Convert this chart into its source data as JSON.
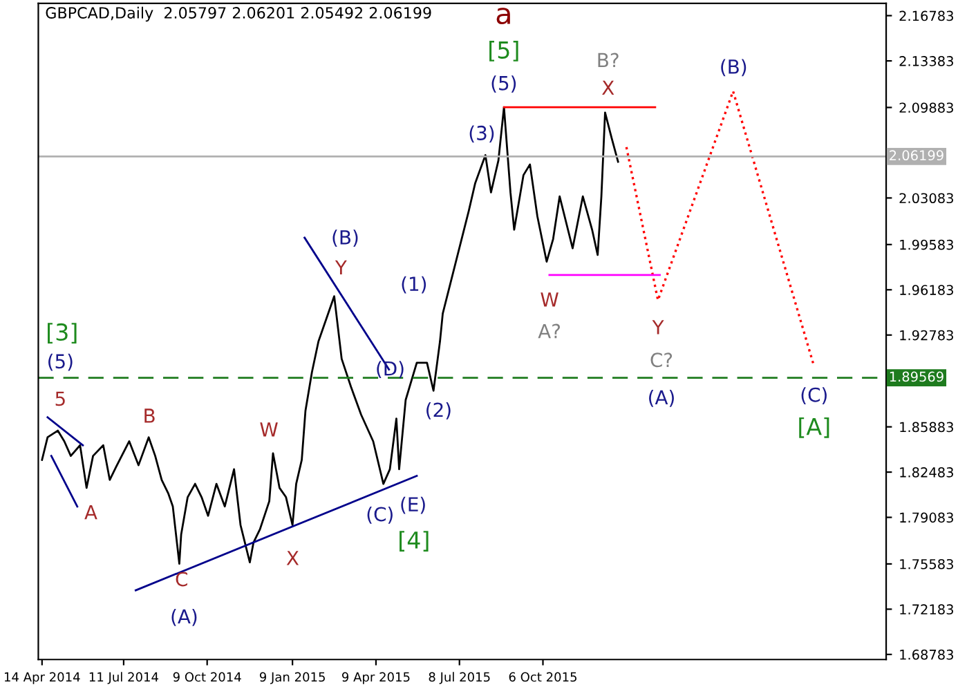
{
  "chart_data": {
    "type": "line",
    "title": "GBPCAD,Daily  2.05797 2.06201 2.05492 2.06199",
    "xlim": [
      "2014-04-10",
      "2016-10-10"
    ],
    "ylim": [
      1.684,
      2.177
    ],
    "xticks": [
      {
        "value": "2014-04-14",
        "label": "14 Apr 2014"
      },
      {
        "value": "2014-07-11",
        "label": "11 Jul 2014"
      },
      {
        "value": "2014-10-09",
        "label": "9 Oct 2014"
      },
      {
        "value": "2015-01-09",
        "label": "9 Jan 2015"
      },
      {
        "value": "2015-04-09",
        "label": "9 Apr 2015"
      },
      {
        "value": "2015-07-08",
        "label": "8 Jul 2015"
      },
      {
        "value": "2015-10-06",
        "label": "6 Oct 2015"
      }
    ],
    "yticks": [
      1.68783,
      1.72183,
      1.75583,
      1.79083,
      1.82483,
      1.85883,
      1.92783,
      1.96183,
      1.99583,
      2.03083,
      2.09883,
      2.13383,
      2.16783
    ],
    "grid": false,
    "legend": false,
    "series": [
      {
        "color": "#000000",
        "x": [
          "2014-04-14",
          "2014-04-20",
          "2014-05-01",
          "2014-05-08",
          "2014-05-15",
          "2014-05-25",
          "2014-06-01",
          "2014-06-08",
          "2014-06-19",
          "2014-06-26",
          "2014-07-03",
          "2014-07-17",
          "2014-07-27",
          "2014-08-07",
          "2014-08-14",
          "2014-08-21",
          "2014-08-28",
          "2014-09-02",
          "2014-09-09",
          "2014-09-11",
          "2014-09-18",
          "2014-09-26",
          "2014-10-03",
          "2014-10-10",
          "2014-10-19",
          "2014-10-28",
          "2014-11-07",
          "2014-11-14",
          "2014-11-24",
          "2014-11-28",
          "2014-12-05",
          "2014-12-15",
          "2014-12-19",
          "2014-12-26",
          "2015-01-02",
          "2015-01-09",
          "2015-01-13",
          "2015-01-19",
          "2015-01-23",
          "2015-01-30",
          "2015-02-06",
          "2015-02-23",
          "2015-03-03",
          "2015-03-13",
          "2015-03-24",
          "2015-04-06",
          "2015-04-17",
          "2015-04-24",
          "2015-05-01",
          "2015-05-04",
          "2015-05-11",
          "2015-05-23",
          "2015-06-03",
          "2015-06-10",
          "2015-06-17",
          "2015-06-20",
          "2015-07-18",
          "2015-07-25",
          "2015-08-05",
          "2015-08-11",
          "2015-08-19",
          "2015-08-25",
          "2015-09-01",
          "2015-09-05",
          "2015-09-15",
          "2015-09-22",
          "2015-09-30",
          "2015-10-10",
          "2015-10-17",
          "2015-10-24",
          "2015-11-07",
          "2015-11-18",
          "2015-11-28",
          "2015-12-04",
          "2015-12-08",
          "2015-12-12",
          "2015-12-19",
          "2015-12-26"
        ],
        "values": [
          1.834,
          1.851,
          1.856,
          1.848,
          1.837,
          1.845,
          1.813,
          1.837,
          1.845,
          1.819,
          1.829,
          1.848,
          1.83,
          1.851,
          1.837,
          1.819,
          1.809,
          1.799,
          1.756,
          1.778,
          1.806,
          1.816,
          1.806,
          1.792,
          1.816,
          1.799,
          1.827,
          1.785,
          1.757,
          1.772,
          1.782,
          1.803,
          1.839,
          1.813,
          1.806,
          1.785,
          1.816,
          1.834,
          1.871,
          1.9,
          1.923,
          1.957,
          1.91,
          1.889,
          1.868,
          1.848,
          1.816,
          1.827,
          1.865,
          1.827,
          1.879,
          1.907,
          1.907,
          1.886,
          1.923,
          1.944,
          2.021,
          2.042,
          2.063,
          2.035,
          2.059,
          2.099,
          2.035,
          2.007,
          2.048,
          2.056,
          2.017,
          1.983,
          2.0,
          2.032,
          1.993,
          2.032,
          2.007,
          1.988,
          2.032,
          2.095,
          2.076,
          2.058
        ]
      },
      {
        "color": "#ff0000",
        "line_style": "dotted",
        "x": [
          "2016-01-04",
          "2016-02-07",
          "2016-04-28",
          "2016-07-24"
        ],
        "values": [
          2.069,
          1.954,
          2.111,
          1.905
        ]
      },
      {
        "color": "#ff0000",
        "x": [
          "2015-08-25",
          "2016-02-04"
        ],
        "values": [
          2.099,
          2.099
        ]
      },
      {
        "color": "#ff00ff",
        "x": [
          "2015-10-13",
          "2016-02-09"
        ],
        "values": [
          1.973,
          1.973
        ]
      },
      {
        "color": "#00008b",
        "x": [
          "2014-07-24",
          "2015-05-23"
        ],
        "values": [
          1.736,
          1.822
        ]
      },
      {
        "color": "#00008b",
        "x": [
          "2015-01-22",
          "2015-04-23"
        ],
        "values": [
          2.001,
          1.902
        ]
      },
      {
        "color": "#00008b",
        "x": [
          "2014-04-20",
          "2014-05-28"
        ],
        "values": [
          1.866,
          1.845
        ]
      },
      {
        "color": "#00008b",
        "x": [
          "2014-04-24",
          "2014-05-22"
        ],
        "values": [
          1.837,
          1.799
        ]
      }
    ],
    "ref_lines": [
      {
        "axis": "y",
        "value": 2.06199,
        "label": "2.06199",
        "color": "#b0b0b0",
        "line_style": "solid"
      },
      {
        "axis": "y",
        "value": 1.89569,
        "label": "1.89569",
        "color": "#1e7b1e",
        "line_style": "dashed"
      }
    ],
    "annotations": [
      "a",
      "[5]",
      "(5)",
      "(3)",
      "B?",
      "X",
      "(B)",
      "W",
      "A?",
      "Y",
      "C?",
      "(A)",
      "(C)",
      "[A]",
      "[3]",
      "(5)",
      "5",
      "A",
      "B",
      "C",
      "(A)",
      "W",
      "X",
      "(B)",
      "Y",
      "(D)",
      "(1)",
      "(2)",
      "(C)",
      "(E)",
      "[4]"
    ]
  }
}
